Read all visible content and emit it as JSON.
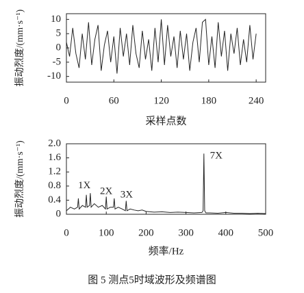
{
  "caption": "图 5  测点5时域波形及频谱图",
  "chart_data": [
    {
      "type": "line",
      "xlabel": "采样点数",
      "ylabel": "振动烈度/(mm·s⁻¹)",
      "color": "#222222",
      "x": [
        0,
        4,
        8,
        12,
        16,
        20,
        24,
        28,
        32,
        36,
        40,
        44,
        48,
        52,
        56,
        60,
        64,
        68,
        72,
        76,
        80,
        84,
        88,
        92,
        96,
        100,
        104,
        108,
        112,
        116,
        120,
        124,
        128,
        132,
        136,
        140,
        144,
        148,
        152,
        156,
        160,
        164,
        168,
        172,
        176,
        180,
        184,
        188,
        192,
        196,
        200,
        204,
        208,
        212,
        216,
        220,
        224,
        228,
        232,
        236,
        240
      ],
      "values": [
        2,
        -3,
        7,
        -2,
        -7,
        5,
        -4,
        9,
        -6,
        3,
        8,
        -8,
        1,
        6,
        -5,
        4,
        -9,
        7,
        -3,
        5,
        -6,
        8,
        -2,
        -7,
        6,
        -4,
        3,
        -8,
        7,
        -5,
        10,
        -6,
        8,
        -3,
        4,
        -7,
        6,
        -4,
        5,
        -8,
        2,
        7,
        -5,
        9,
        10,
        -6,
        4,
        -7,
        9,
        -3,
        6,
        -8,
        5,
        -2,
        7,
        -6,
        3,
        -5,
        8,
        -4,
        5
      ],
      "xlim": [
        0,
        252
      ],
      "ylim": [
        -12,
        12
      ],
      "xticks": [
        0,
        60,
        120,
        180,
        240
      ],
      "yticks": [
        -10,
        -5,
        0,
        5,
        10
      ]
    },
    {
      "type": "line",
      "xlabel": "频率/Hz",
      "ylabel": "振动烈度/(mm·s⁻¹)",
      "color": "#222222",
      "x": [
        0,
        10,
        20,
        28,
        30,
        32,
        40,
        48,
        50,
        52,
        58,
        60,
        62,
        70,
        80,
        90,
        98,
        100,
        102,
        110,
        118,
        120,
        122,
        130,
        140,
        148,
        150,
        152,
        160,
        170,
        180,
        190,
        200,
        220,
        240,
        260,
        280,
        300,
        320,
        340,
        343,
        345,
        347,
        350,
        360,
        380,
        400,
        420,
        440,
        460,
        480,
        500
      ],
      "values": [
        0.1,
        0.2,
        0.15,
        0.2,
        0.45,
        0.15,
        0.25,
        0.2,
        0.55,
        0.2,
        0.25,
        0.6,
        0.2,
        0.3,
        0.2,
        0.25,
        0.15,
        0.5,
        0.15,
        0.2,
        0.2,
        0.45,
        0.15,
        0.2,
        0.15,
        0.1,
        0.38,
        0.1,
        0.15,
        0.12,
        0.1,
        0.12,
        0.08,
        0.06,
        0.07,
        0.05,
        0.06,
        0.05,
        0.04,
        0.05,
        0.1,
        1.72,
        0.1,
        0.04,
        0.04,
        0.03,
        0.05,
        0.03,
        0.03,
        0.02,
        0.03,
        0.02
      ],
      "xlim": [
        0,
        500
      ],
      "ylim": [
        0,
        2
      ],
      "xticks": [
        0,
        100,
        200,
        300,
        400,
        500
      ],
      "yticks": [
        0,
        0.4,
        0.8,
        1.2,
        1.6,
        {
          "value": 2,
          "label": "2.0"
        }
      ],
      "annotations": [
        "1X",
        "2X",
        "3X",
        "7X"
      ]
    }
  ]
}
